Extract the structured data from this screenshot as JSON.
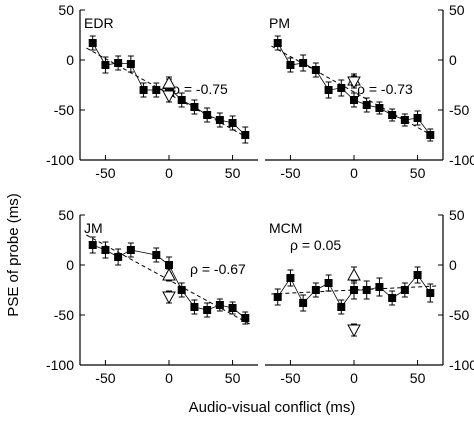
{
  "figure": {
    "xlabel": "Audio-visual conflict (ms)",
    "ylabel": "PSE of probe (ms)"
  },
  "colors": {
    "marker": "#000000",
    "axis": "#000000",
    "background": "#ffffff"
  },
  "chart_data": [
    {
      "type": "scatter",
      "panel": "EDR",
      "annotation": "ρ = -0.75",
      "xlim": [
        -70,
        70
      ],
      "ylim": [
        -100,
        50
      ],
      "xticks": [
        "-50",
        "0",
        "50"
      ],
      "yticks": [
        "50",
        "0",
        "-50",
        "-100"
      ],
      "y_axis_side": "left",
      "series": [
        {
          "marker": "filled-square",
          "x": [
            -60,
            -50,
            -40,
            -30,
            -20,
            -10,
            0,
            10,
            20,
            30,
            40,
            50,
            60
          ],
          "y": [
            17,
            -5,
            -3,
            -4,
            -30,
            -30,
            -28,
            -40,
            -47,
            -55,
            -60,
            -63,
            -75
          ],
          "err": [
            7,
            8,
            7,
            8,
            7,
            7,
            9,
            7,
            7,
            7,
            7,
            7,
            8
          ]
        },
        {
          "marker": "open-triangle-up",
          "x": [
            0
          ],
          "y": [
            -23
          ],
          "err": [
            6
          ]
        },
        {
          "marker": "open-triangle-down",
          "x": [
            0
          ],
          "y": [
            -36
          ],
          "err": [
            6
          ]
        }
      ],
      "fit": {
        "style": "dashed",
        "x": [
          -65,
          65
        ],
        "y": [
          12,
          -80
        ]
      }
    },
    {
      "type": "scatter",
      "panel": "PM",
      "annotation": "ρ = -0.73",
      "xlim": [
        -70,
        70
      ],
      "ylim": [
        -100,
        50
      ],
      "xticks": [
        "-50",
        "0",
        "50"
      ],
      "yticks": [
        "50",
        "0",
        "-50",
        "-100"
      ],
      "y_axis_side": "right",
      "series": [
        {
          "marker": "filled-square",
          "x": [
            -60,
            -50,
            -40,
            -30,
            -20,
            -10,
            0,
            10,
            20,
            30,
            40,
            50,
            60
          ],
          "y": [
            17,
            -5,
            -3,
            -10,
            -30,
            -28,
            -40,
            -45,
            -48,
            -55,
            -60,
            -58,
            -75
          ],
          "err": [
            7,
            7,
            8,
            7,
            8,
            8,
            7,
            7,
            6,
            6,
            6,
            7,
            6
          ]
        },
        {
          "marker": "open-triangle-up",
          "x": [
            0
          ],
          "y": [
            -20
          ],
          "err": [
            6
          ]
        },
        {
          "marker": "open-triangle-down",
          "x": [
            0
          ],
          "y": [
            -22
          ],
          "err": [
            6
          ]
        }
      ],
      "fit": {
        "style": "dashed",
        "x": [
          -65,
          65
        ],
        "y": [
          14,
          -78
        ]
      }
    },
    {
      "type": "scatter",
      "panel": "JM",
      "annotation": "ρ = -0.67",
      "xlim": [
        -70,
        70
      ],
      "ylim": [
        -100,
        50
      ],
      "xticks": [
        "-50",
        "0",
        "50"
      ],
      "yticks": [
        "50",
        "0",
        "-50",
        "-100"
      ],
      "y_axis_side": "left",
      "series": [
        {
          "marker": "filled-square",
          "x": [
            -60,
            -50,
            -40,
            -30,
            -10,
            0,
            10,
            20,
            30,
            40,
            50,
            60
          ],
          "y": [
            20,
            15,
            8,
            15,
            10,
            0,
            -25,
            -42,
            -45,
            -40,
            -43,
            -53
          ],
          "err": [
            8,
            8,
            8,
            7,
            7,
            8,
            7,
            7,
            7,
            6,
            6,
            6
          ]
        },
        {
          "marker": "open-triangle-up",
          "x": [
            0
          ],
          "y": [
            -10
          ],
          "err": [
            6
          ]
        },
        {
          "marker": "open-triangle-down",
          "x": [
            0
          ],
          "y": [
            -32
          ],
          "err": [
            6
          ]
        }
      ],
      "fit": {
        "style": "dashed",
        "x": [
          -65,
          65
        ],
        "y": [
          30,
          -60
        ]
      }
    },
    {
      "type": "scatter",
      "panel": "MCM",
      "annotation": "ρ = 0.05",
      "xlim": [
        -70,
        70
      ],
      "ylim": [
        -100,
        50
      ],
      "xticks": [
        "-50",
        "0",
        "50"
      ],
      "yticks": [
        "50",
        "0",
        "-50",
        "-100"
      ],
      "y_axis_side": "right",
      "series": [
        {
          "marker": "filled-square",
          "x": [
            -60,
            -50,
            -40,
            -30,
            -20,
            -10,
            0,
            10,
            20,
            30,
            40,
            50,
            60
          ],
          "y": [
            -32,
            -13,
            -38,
            -25,
            -18,
            -42,
            -25,
            -25,
            -22,
            -33,
            -25,
            -10,
            -28
          ],
          "err": [
            8,
            8,
            8,
            7,
            8,
            7,
            9,
            9,
            9,
            7,
            7,
            8,
            9
          ]
        },
        {
          "marker": "open-triangle-up",
          "x": [
            0
          ],
          "y": [
            -10
          ],
          "err": [
            8
          ]
        },
        {
          "marker": "open-triangle-down",
          "x": [
            0
          ],
          "y": [
            -65
          ],
          "err": [
            6
          ]
        }
      ],
      "fit": {
        "style": "dashed",
        "x": [
          -65,
          65
        ],
        "y": [
          -29,
          -21
        ]
      }
    }
  ]
}
